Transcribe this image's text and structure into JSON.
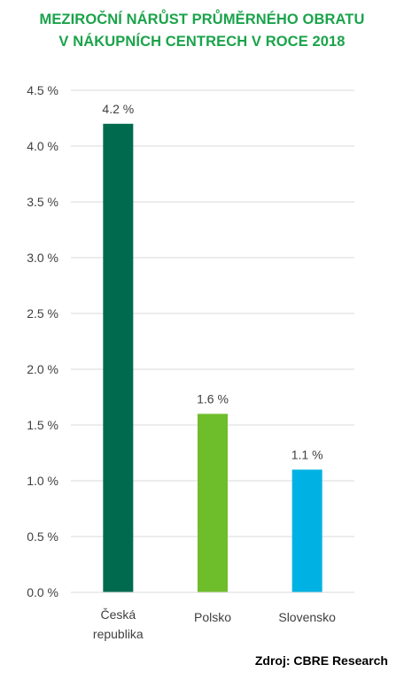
{
  "header": {
    "title_line1": "MEZIROČNÍ NÁRŮST PRŮMĚRNÉHO OBRATU",
    "title_line2": "V NÁKUPNÍCH CENTRECH V ROCE 2018"
  },
  "source": "Zdroj: CBRE Research",
  "colors": {
    "title": "#1aa34a",
    "grid": "#d9d9d9",
    "text": "#404040"
  },
  "chart_data": {
    "type": "bar",
    "categories": [
      [
        "Česká",
        "republika"
      ],
      [
        "Polsko"
      ],
      [
        "Slovensko"
      ]
    ],
    "values": [
      4.2,
      1.6,
      1.1
    ],
    "data_labels": [
      "4.2 %",
      "1.6 %",
      "1.1 %"
    ],
    "bar_colors": [
      "#006a4e",
      "#6ebd2b",
      "#00b2e3"
    ],
    "ylim": [
      0,
      4.5
    ],
    "yticks": [
      0,
      0.5,
      1.0,
      1.5,
      2.0,
      2.5,
      3.0,
      3.5,
      4.0,
      4.5
    ],
    "ytick_labels": [
      "0.0 %",
      "0.5 %",
      "1.0 %",
      "1.5 %",
      "2.0 %",
      "2.5 %",
      "3.0 %",
      "3.5 %",
      "4.0 %",
      "4.5 %"
    ],
    "grid": true,
    "legend": "none"
  }
}
